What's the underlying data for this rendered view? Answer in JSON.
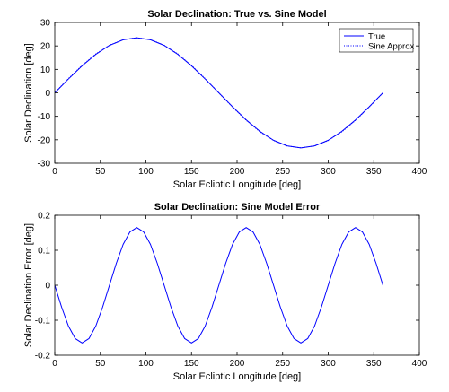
{
  "chart_data": [
    {
      "type": "line",
      "title": "Solar Declination: True vs. Sine Model",
      "xlabel": "Solar Ecliptic Longitude [deg]",
      "ylabel": "Solar Declination [deg]",
      "xlim": [
        0,
        400
      ],
      "ylim": [
        -30,
        30
      ],
      "xticks": [
        0,
        50,
        100,
        150,
        200,
        250,
        300,
        350,
        400
      ],
      "yticks": [
        -30,
        -20,
        -10,
        0,
        10,
        20,
        30
      ],
      "grid": false,
      "legend": "top-right",
      "series": [
        {
          "name": "True",
          "style": "solid",
          "color": "#0000ff",
          "x": [
            0,
            15,
            30,
            45,
            60,
            75,
            90,
            105,
            120,
            135,
            150,
            165,
            180,
            195,
            210,
            225,
            240,
            255,
            270,
            285,
            300,
            315,
            330,
            345,
            360
          ],
          "y": [
            0,
            5.9,
            11.5,
            16.4,
            20.2,
            22.6,
            23.44,
            22.6,
            20.2,
            16.4,
            11.5,
            5.9,
            0,
            -5.9,
            -11.5,
            -16.4,
            -20.2,
            -22.6,
            -23.44,
            -22.6,
            -20.2,
            -16.4,
            -11.5,
            -5.9,
            0
          ]
        },
        {
          "name": "Sine Approx",
          "style": "dotted",
          "color": "#0000ff",
          "x": [
            0,
            15,
            30,
            45,
            60,
            75,
            90,
            105,
            120,
            135,
            150,
            165,
            180,
            195,
            210,
            225,
            240,
            255,
            270,
            285,
            300,
            315,
            330,
            345,
            360
          ],
          "y": [
            0,
            6.07,
            11.72,
            16.57,
            20.3,
            22.64,
            23.44,
            22.64,
            20.3,
            16.57,
            11.72,
            6.07,
            0,
            -6.07,
            -11.72,
            -16.57,
            -20.3,
            -22.64,
            -23.44,
            -22.64,
            -20.3,
            -16.57,
            -11.72,
            -6.07,
            0
          ]
        }
      ]
    },
    {
      "type": "line",
      "title": "Solar Declination: Sine Model Error",
      "xlabel": "Solar Ecliptic Longitude [deg]",
      "ylabel": "Solar Declination Error [deg]",
      "xlim": [
        0,
        400
      ],
      "ylim": [
        -0.2,
        0.2
      ],
      "xticks": [
        0,
        50,
        100,
        150,
        200,
        250,
        300,
        350,
        400
      ],
      "yticks": [
        -0.2,
        -0.1,
        0,
        0.1,
        0.2
      ],
      "grid": false,
      "series": [
        {
          "style": "solid",
          "color": "#0000ff",
          "x": [
            0,
            7.5,
            15,
            22.5,
            30,
            37.5,
            45,
            52.5,
            60,
            67.5,
            75,
            82.5,
            90,
            97.5,
            105,
            112.5,
            120,
            127.5,
            135,
            142.5,
            150,
            157.5,
            165,
            172.5,
            180,
            187.5,
            195,
            202.5,
            210,
            217.5,
            225,
            232.5,
            240,
            247.5,
            255,
            262.5,
            270,
            277.5,
            285,
            292.5,
            300,
            307.5,
            315,
            322.5,
            330,
            337.5,
            345,
            352.5,
            360
          ],
          "y": [
            0,
            -0.0625,
            -0.1167,
            -0.1525,
            -0.165,
            -0.1525,
            -0.1167,
            -0.0625,
            0,
            0.0625,
            0.1167,
            0.1525,
            0.165,
            0.1525,
            0.1167,
            0.0625,
            0,
            -0.0625,
            -0.1167,
            -0.1525,
            -0.165,
            -0.1525,
            -0.1167,
            -0.0625,
            0,
            0.0625,
            0.1167,
            0.1525,
            0.165,
            0.1525,
            0.1167,
            0.0625,
            0,
            -0.0625,
            -0.1167,
            -0.1525,
            -0.165,
            -0.1525,
            -0.1167,
            -0.0625,
            0,
            0.0625,
            0.1167,
            0.1525,
            0.165,
            0.1525,
            0.1167,
            0.0625,
            0
          ]
        }
      ]
    }
  ]
}
